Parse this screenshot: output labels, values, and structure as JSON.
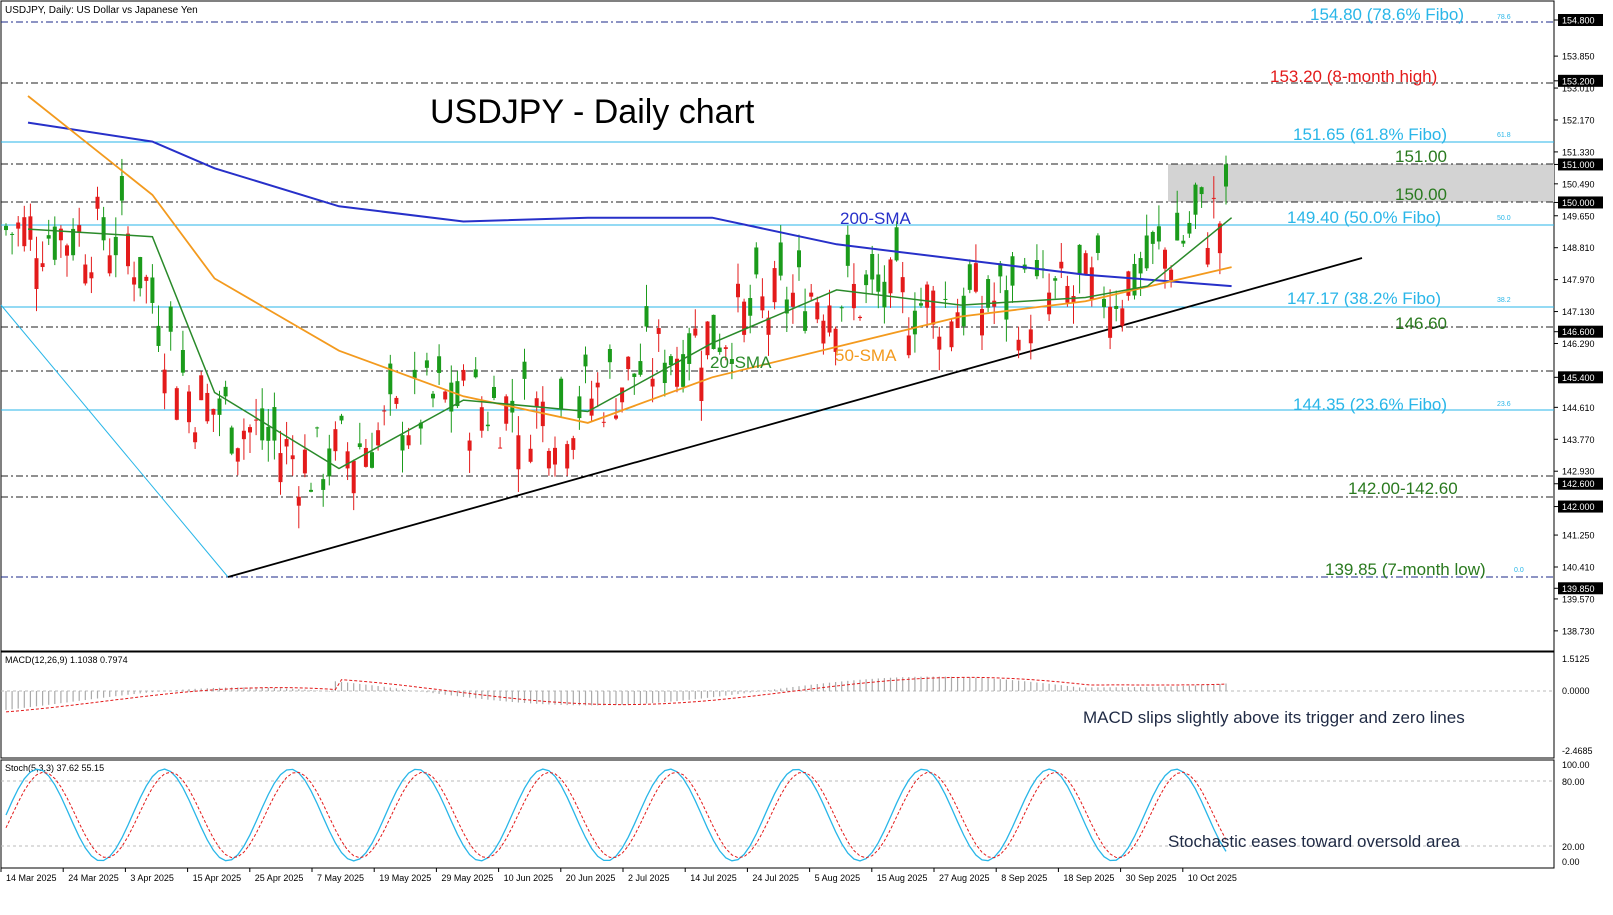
{
  "header": "USDJPY, Daily:  US Dollar vs Japanese Yen",
  "chart_title": "USDJPY - Daily chart",
  "colors": {
    "bull": "#1b9b1b",
    "bear": "#e31b1b",
    "sma20": "#2a8a2a",
    "sma50": "#f39a1e",
    "sma200": "#2730c9",
    "fibo": "#29b6e8",
    "level": "#2a7a1f",
    "high": "#e31b1b",
    "trend": "#000000",
    "zone": "#d3d3d3"
  },
  "price_axis_labels": [
    "154.800",
    "153.850",
    "153.200",
    "153.010",
    "152.170",
    "151.330",
    "151.000",
    "150.490",
    "150.000",
    "149.650",
    "148.810",
    "147.970",
    "147.130",
    "146.600",
    "146.290",
    "145.400",
    "144.610",
    "143.770",
    "142.930",
    "142.600",
    "142.000",
    "141.250",
    "140.410",
    "139.850",
    "139.570",
    "138.730"
  ],
  "date_labels": [
    "14 Mar 2025",
    "24 Mar 2025",
    "3 Apr 2025",
    "15 Apr 2025",
    "25 Apr 2025",
    "7 May 2025",
    "19 May 2025",
    "29 May 2025",
    "10 Jun 2025",
    "20 Jun 2025",
    "2 Jul 2025",
    "14 Jul 2025",
    "24 Jul 2025",
    "5 Aug 2025",
    "15 Aug 2025",
    "27 Aug 2025",
    "8 Sep 2025",
    "18 Sep 2025",
    "30 Sep 2025",
    "10 Oct 2025"
  ],
  "annotations": {
    "fibo_786": "154.80 (78.6% Fibo)",
    "high_8m": "153.20  (8-month high)",
    "fibo_618": "151.65 (61.8% Fibo)",
    "lvl_151": "151.00",
    "lvl_150": "150.00",
    "fibo_50": "149.40 (50.0% Fibo)",
    "sma200": "200-SMA",
    "sma20": "20-SMA",
    "sma50": "50-SMA",
    "fibo_382": "147.17 (38.2% Fibo)",
    "lvl_1466": "146.60",
    "fibo_236": "144.35 (23.6% Fibo)",
    "zone_142": "142.00-142.60",
    "low_7m": "139.85 (7-month low)",
    "fib_tag_786": "78.6",
    "fib_tag_618": "61.8",
    "fib_tag_50": "50.0",
    "fib_tag_382": "38.2",
    "fib_tag_236": "23.6",
    "fib_tag_0": "0.0"
  },
  "macd": {
    "header": "MACD(12,26,9) 1.1038 0.7974",
    "axis_labels": [
      "1.5125",
      "0.0000",
      "-2.4685"
    ],
    "comment": "MACD slips slightly above its trigger and zero lines"
  },
  "stoch": {
    "header": "Stoch(5,3,3) 37.62 55.15",
    "axis_labels": [
      "100.00",
      "80.00",
      "20.00",
      "0.00"
    ],
    "comment": "Stochastic eases toward oversold area"
  },
  "chart_data": {
    "type": "line",
    "title": "USDJPY - Daily chart",
    "x_range": [
      "14 Mar 2025",
      "14 Oct 2025"
    ],
    "price_range": [
      138.2,
      155.3
    ],
    "levels": [
      154.8,
      153.2,
      151.65,
      151.0,
      150.0,
      149.4,
      147.17,
      146.6,
      145.4,
      144.35,
      142.6,
      142.0,
      139.85
    ],
    "support_zone": [
      150.0,
      151.0
    ],
    "trendline": {
      "from": [
        "15 Apr 2025",
        139.85
      ],
      "to": [
        "14 Oct 2025",
        148.2
      ]
    },
    "series": [
      {
        "name": "200-SMA",
        "x": [
          "14 Mar 2025",
          "3 Apr 2025",
          "15 Apr 2025",
          "7 May 2025",
          "29 May 2025",
          "20 Jun 2025",
          "14 Jul 2025",
          "5 Aug 2025",
          "27 Aug 2025",
          "18 Sep 2025",
          "14 Oct 2025"
        ],
        "y": [
          152.1,
          151.6,
          150.9,
          149.9,
          149.5,
          149.6,
          149.6,
          148.9,
          148.5,
          148.1,
          147.8
        ]
      },
      {
        "name": "50-SMA",
        "x": [
          "14 Mar 2025",
          "3 Apr 2025",
          "15 Apr 2025",
          "7 May 2025",
          "29 May 2025",
          "20 Jun 2025",
          "14 Jul 2025",
          "5 Aug 2025",
          "27 Aug 2025",
          "18 Sep 2025",
          "14 Oct 2025"
        ],
        "y": [
          152.8,
          150.2,
          148.0,
          146.1,
          144.9,
          144.2,
          145.4,
          146.2,
          147.0,
          147.4,
          148.3
        ]
      },
      {
        "name": "20-SMA",
        "x": [
          "14 Mar 2025",
          "3 Apr 2025",
          "15 Apr 2025",
          "7 May 2025",
          "29 May 2025",
          "20 Jun 2025",
          "14 Jul 2025",
          "5 Aug 2025",
          "27 Aug 2025",
          "18 Sep 2025",
          "30 Sep 2025",
          "14 Oct 2025"
        ],
        "y": [
          149.3,
          149.1,
          145.0,
          143.0,
          144.8,
          144.5,
          146.3,
          147.7,
          147.3,
          147.5,
          147.8,
          149.6
        ]
      }
    ]
  }
}
